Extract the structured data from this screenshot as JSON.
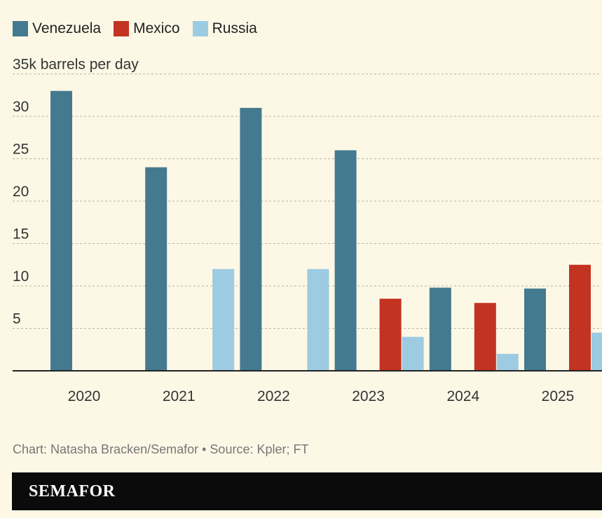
{
  "chart_data": {
    "type": "bar",
    "categories": [
      "2020",
      "2021",
      "2022",
      "2023",
      "2024",
      "2025"
    ],
    "series": [
      {
        "name": "Venezuela",
        "color": "#447a8f",
        "values": [
          33,
          24,
          31,
          26,
          9.8,
          9.7
        ]
      },
      {
        "name": "Mexico",
        "color": "#c33322",
        "values": [
          0,
          0,
          0,
          8.5,
          8,
          12.5
        ]
      },
      {
        "name": "Russia",
        "color": "#9ccbe2",
        "values": [
          0,
          12,
          12,
          4,
          2,
          4.5
        ]
      }
    ],
    "ylabel": "35k barrels per day",
    "yticks": [
      "5",
      "10",
      "15",
      "20",
      "25",
      "30"
    ],
    "ylim": [
      0,
      35
    ],
    "grid": true,
    "legend_position": "top-left"
  },
  "source": "Chart: Natasha Bracken/Semafor • Source: Kpler; FT",
  "brand": "SEMAFOR"
}
